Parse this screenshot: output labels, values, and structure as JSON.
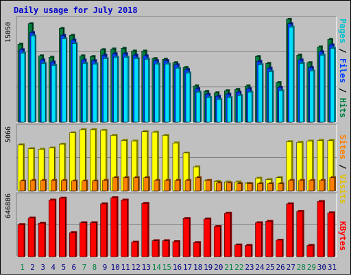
{
  "title": "Daily usage for July 2018",
  "panels": {
    "hits": {
      "max_label": "15050",
      "legend": [
        {
          "text": "Pages",
          "color": "#00c0d0"
        },
        {
          "text": " / ",
          "color": "#000000"
        },
        {
          "text": "Files",
          "color": "#0040ff"
        },
        {
          "text": " / ",
          "color": "#000000"
        },
        {
          "text": "Hits",
          "color": "#008040"
        }
      ]
    },
    "visits": {
      "max_label": "5066",
      "legend": [
        {
          "text": "Sites",
          "color": "#ff8000"
        },
        {
          "text": " / ",
          "color": "#000000"
        },
        {
          "text": "Visits",
          "color": "#e0c000"
        }
      ]
    },
    "kbytes": {
      "max_label": "646886",
      "legend": [
        {
          "text": "KBytes",
          "color": "#ff0000"
        }
      ]
    }
  },
  "colors": {
    "hits": "#008040",
    "files": "#0040ff",
    "pages": "#00e0ff",
    "visits": "#ffff00",
    "sites": "#ff8000",
    "kbytes": "#ff0000",
    "weekday_label": "#000080",
    "weekend_label": "#008040"
  },
  "chart_data": {
    "type": "bar",
    "title": "Daily usage for July 2018",
    "days": [
      1,
      2,
      3,
      4,
      5,
      6,
      7,
      8,
      9,
      10,
      11,
      12,
      13,
      14,
      15,
      16,
      17,
      18,
      19,
      20,
      21,
      22,
      23,
      24,
      25,
      26,
      27,
      28,
      29,
      30,
      31
    ],
    "weekend_days": [
      1,
      7,
      8,
      14,
      15,
      21,
      22,
      28,
      29
    ],
    "series": [
      {
        "name": "Hits",
        "ylim": [
          0,
          15050
        ],
        "values": [
          11400,
          14400,
          9700,
          9500,
          13700,
          12700,
          9700,
          9600,
          10600,
          10700,
          10800,
          10400,
          10400,
          9300,
          9200,
          8700,
          8000,
          5300,
          4500,
          4300,
          4600,
          4800,
          5300,
          9600,
          8600,
          5800,
          15050,
          9800,
          8700,
          11000,
          12100
        ]
      },
      {
        "name": "Files",
        "ylim": [
          0,
          15050
        ],
        "values": [
          10600,
          13100,
          9100,
          8800,
          12700,
          12000,
          9100,
          9000,
          9800,
          10000,
          10000,
          9800,
          9700,
          9000,
          9000,
          8400,
          7700,
          4900,
          4100,
          3800,
          4100,
          4400,
          4900,
          8900,
          7900,
          5100,
          14400,
          9100,
          8000,
          10300,
          11300
        ]
      },
      {
        "name": "Pages",
        "ylim": [
          0,
          15050
        ],
        "values": [
          10100,
          12600,
          8600,
          8300,
          12200,
          11500,
          8600,
          8500,
          9300,
          9500,
          9500,
          9300,
          9200,
          8500,
          8500,
          7900,
          7200,
          4400,
          3600,
          3300,
          3600,
          3900,
          4400,
          8400,
          7400,
          4600,
          13900,
          8600,
          7500,
          9800,
          10800
        ]
      },
      {
        "name": "Visits",
        "ylim": [
          0,
          5066
        ],
        "values": [
          3650,
          3350,
          3300,
          3400,
          3700,
          4600,
          4850,
          4850,
          4800,
          4400,
          4000,
          3950,
          4700,
          4650,
          4400,
          3800,
          3000,
          1900,
          800,
          750,
          700,
          700,
          600,
          1000,
          900,
          1050,
          3900,
          3850,
          3950,
          4000,
          4000
        ]
      },
      {
        "name": "Sites",
        "ylim": [
          0,
          5066
        ],
        "values": [
          780,
          830,
          830,
          830,
          820,
          780,
          780,
          780,
          830,
          1050,
          1050,
          1050,
          1050,
          830,
          830,
          830,
          830,
          1050,
          830,
          620,
          620,
          570,
          570,
          570,
          570,
          570,
          830,
          830,
          830,
          830,
          1050
        ]
      },
      {
        "name": "KBytes",
        "ylim": [
          0,
          646886
        ],
        "values": [
          340000,
          410000,
          355000,
          600000,
          620000,
          255000,
          360000,
          360000,
          560000,
          625000,
          600000,
          155000,
          565000,
          170000,
          170000,
          160000,
          405000,
          150000,
          400000,
          320000,
          460000,
          125000,
          120000,
          360000,
          375000,
          175000,
          560000,
          480000,
          120000,
          585000,
          465000
        ]
      }
    ],
    "xlabel": "",
    "ylabel": "",
    "grid": true
  }
}
